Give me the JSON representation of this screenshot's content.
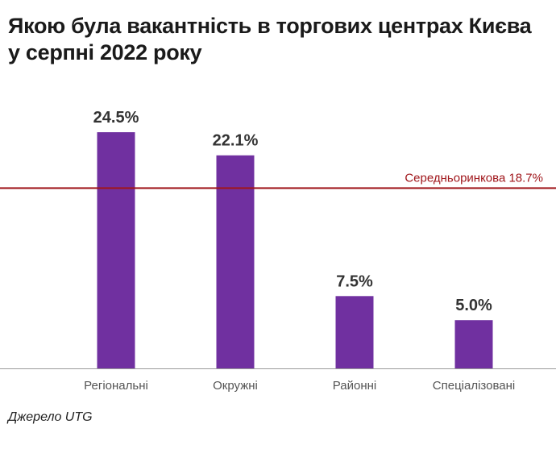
{
  "title_lines": [
    "Якою була вакантність в торгових центрах Києва",
    "у серпні 2022 року"
  ],
  "source": "Джерело UTG",
  "chart_data": {
    "type": "bar",
    "categories": [
      "Регіональні",
      "Окружні",
      "Районні",
      "Спеціалізовані"
    ],
    "values": [
      24.5,
      22.1,
      7.5,
      5.0
    ],
    "data_labels": [
      "24.5%",
      "22.1%",
      "7.5%",
      "5.0%"
    ],
    "reference_line": {
      "label": "Середньоринкова 18.7%",
      "value": 18.7
    },
    "ylim": [
      0,
      24.5
    ],
    "grid": false,
    "colors": {
      "bar": "#7030a0",
      "reference_line": "#a0161b",
      "reference_label": "#a0161b",
      "axis": "#9a9a9a"
    }
  }
}
